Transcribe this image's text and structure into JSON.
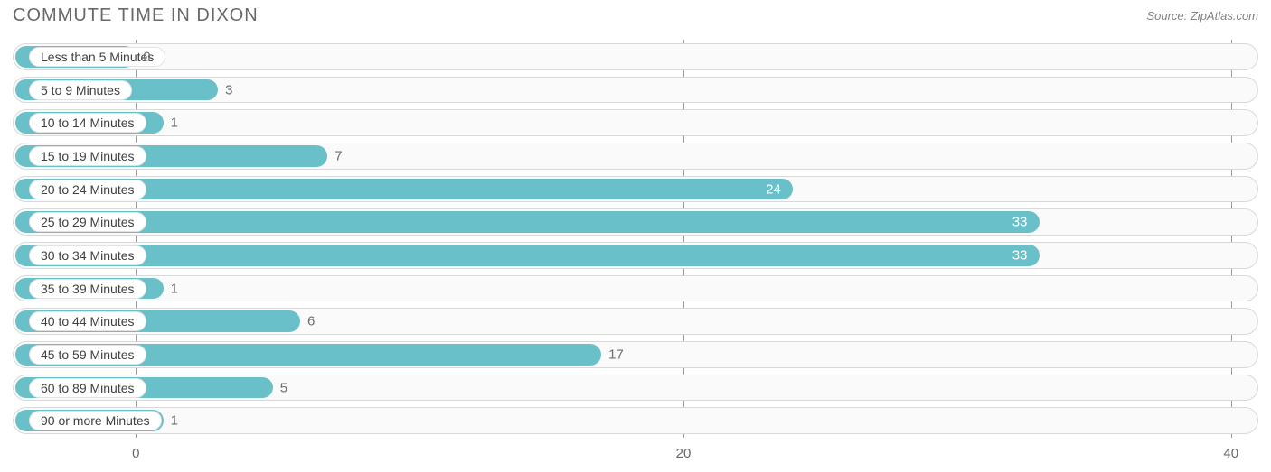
{
  "chart": {
    "type": "horizontal-bar",
    "title": "COMMUTE TIME IN DIXON",
    "source": "Source: ZipAtlas.com",
    "background_color": "#ffffff",
    "track_fill": "#fafafa",
    "track_border": "#d9d9d9",
    "pill_bg": "#ffffff",
    "pill_border": "#e2e2e2",
    "bar_color": "#6ac0c9",
    "value_inside_color": "#ffffff",
    "value_outside_color": "#6e6e6e",
    "grid_color": "#8a8a8a",
    "title_color": "#696969",
    "tick_color": "#696969",
    "title_fontsize": 20,
    "label_fontsize": 14,
    "value_fontsize": 15,
    "tick_fontsize": 15,
    "x_axis": {
      "min": -4.5,
      "max": 41,
      "ticks": [
        0,
        20,
        40
      ]
    },
    "bar_origin": -4.5,
    "categories": [
      "Less than 5 Minutes",
      "5 to 9 Minutes",
      "10 to 14 Minutes",
      "15 to 19 Minutes",
      "20 to 24 Minutes",
      "25 to 29 Minutes",
      "30 to 34 Minutes",
      "35 to 39 Minutes",
      "40 to 44 Minutes",
      "45 to 59 Minutes",
      "60 to 89 Minutes",
      "90 or more Minutes"
    ],
    "values": [
      0,
      3,
      1,
      7,
      24,
      33,
      33,
      1,
      6,
      17,
      5,
      1
    ]
  }
}
